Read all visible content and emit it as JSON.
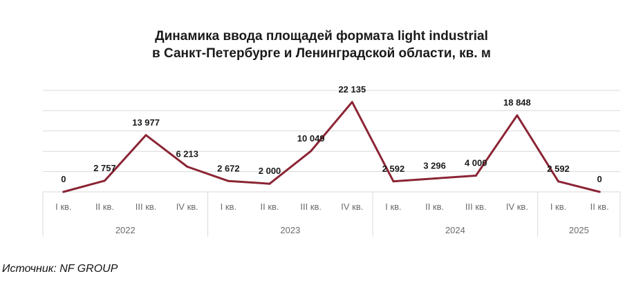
{
  "chart_data": {
    "type": "line",
    "title_line1": "Динамика ввода площадей формата light industrial",
    "title_line2": "в Санкт-Петербурге и Ленинградской области, кв. м",
    "categories": [
      "I кв.",
      "II кв.",
      "III кв.",
      "IV кв.",
      "I кв.",
      "II кв.",
      "III кв.",
      "IV кв.",
      "I кв.",
      "II кв.",
      "III кв.",
      "IV кв.",
      "I кв.",
      "II кв."
    ],
    "years": [
      {
        "label": "2022",
        "quarters": 4
      },
      {
        "label": "2023",
        "quarters": 4
      },
      {
        "label": "2024",
        "quarters": 4
      },
      {
        "label": "2025",
        "quarters": 2
      }
    ],
    "values": [
      0,
      2757,
      13977,
      6213,
      2672,
      2000,
      10049,
      22135,
      2592,
      3296,
      4000,
      18848,
      2592,
      0
    ],
    "value_labels": [
      "0",
      "2 757",
      "13 977",
      "6 213",
      "2 672",
      "2 000",
      "10 049",
      "22 135",
      "2 592",
      "3 296",
      "4 000",
      "18 848",
      "2 592",
      "0"
    ],
    "ylim": [
      0,
      25000
    ],
    "grid": true,
    "line_color": "#8b2434",
    "grid_color": "#d9d9d9"
  },
  "source": "Источник: NF GROUP"
}
